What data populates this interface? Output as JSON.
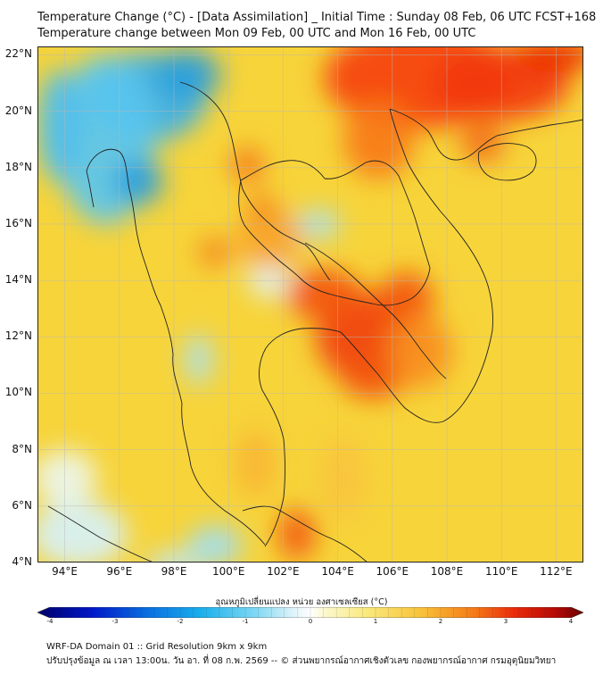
{
  "header": {
    "title_line1": "Temperature Change (°C) - [Data Assimilation] _ Initial Time : Sunday 08 Feb, 06 UTC FCST+168",
    "title_line2": "Temperature change between Mon 09 Feb, 00 UTC and Mon 16 Feb, 00 UTC"
  },
  "map": {
    "lon_range": [
      93,
      113
    ],
    "lat_range": [
      4,
      22.3
    ],
    "lat_ticks": [
      "22°N",
      "20°N",
      "18°N",
      "16°N",
      "14°N",
      "12°N",
      "10°N",
      "8°N",
      "6°N",
      "4°N"
    ],
    "lon_ticks": [
      "94°E",
      "96°E",
      "98°E",
      "100°E",
      "102°E",
      "104°E",
      "106°E",
      "108°E",
      "110°E",
      "112°E"
    ],
    "background_color": "#f7d43a",
    "fields": [
      {
        "lon": 97.0,
        "lat": 20.5,
        "rx": 2.2,
        "ry": 1.6,
        "color": "#3cb0e8",
        "value": -1.6
      },
      {
        "lon": 95.5,
        "lat": 19.0,
        "rx": 1.8,
        "ry": 3.0,
        "color": "#5ac6f0",
        "value": -1.4
      },
      {
        "lon": 98.5,
        "lat": 21.3,
        "rx": 1.2,
        "ry": 0.9,
        "color": "#2a9edc",
        "value": -2.0
      },
      {
        "lon": 96.7,
        "lat": 17.5,
        "rx": 0.9,
        "ry": 0.8,
        "color": "#2a9edc",
        "value": -2.0
      },
      {
        "lon": 93.8,
        "lat": 19.5,
        "rx": 0.8,
        "ry": 2.0,
        "color": "#4fbeee",
        "value": -1.5
      },
      {
        "lon": 103.3,
        "lat": 16.0,
        "rx": 0.8,
        "ry": 0.5,
        "color": "#a8e2f5",
        "value": -0.8
      },
      {
        "lon": 101.5,
        "lat": 14.0,
        "rx": 0.8,
        "ry": 0.6,
        "color": "#dff3f8",
        "value": -0.3
      },
      {
        "lon": 98.9,
        "lat": 11.2,
        "rx": 0.5,
        "ry": 0.9,
        "color": "#a8e2f5",
        "value": -0.8
      },
      {
        "lon": 94.0,
        "lat": 7.0,
        "rx": 1.2,
        "ry": 1.0,
        "color": "#ecf6ee",
        "value": -0.2
      },
      {
        "lon": 94.5,
        "lat": 5.0,
        "rx": 1.8,
        "ry": 1.2,
        "color": "#d6f1f8",
        "value": -0.4
      },
      {
        "lon": 99.5,
        "lat": 4.6,
        "rx": 1.0,
        "ry": 0.7,
        "color": "#9edef5",
        "value": -0.9
      },
      {
        "lon": 98.0,
        "lat": 3.9,
        "rx": 1.0,
        "ry": 0.5,
        "color": "#bfe8f6",
        "value": -0.7
      },
      {
        "lon": 107.0,
        "lat": 21.2,
        "rx": 3.5,
        "ry": 1.8,
        "color": "#f5410e",
        "value": 2.8
      },
      {
        "lon": 110.0,
        "lat": 21.0,
        "rx": 2.5,
        "ry": 1.3,
        "color": "#f23a0a",
        "value": 2.9
      },
      {
        "lon": 112.0,
        "lat": 22.0,
        "rx": 1.5,
        "ry": 0.6,
        "color": "#ea2a05",
        "value": 3.1
      },
      {
        "lon": 105.5,
        "lat": 19.0,
        "rx": 1.3,
        "ry": 1.4,
        "color": "#f77a18",
        "value": 2.3
      },
      {
        "lon": 109.3,
        "lat": 18.9,
        "rx": 0.8,
        "ry": 0.7,
        "color": "#f26a16",
        "value": 2.5
      },
      {
        "lon": 105.0,
        "lat": 12.0,
        "rx": 1.8,
        "ry": 1.6,
        "color": "#f0400c",
        "value": 2.9
      },
      {
        "lon": 103.5,
        "lat": 13.5,
        "rx": 1.4,
        "ry": 0.9,
        "color": "#f25512",
        "value": 2.6
      },
      {
        "lon": 106.5,
        "lat": 13.3,
        "rx": 1.0,
        "ry": 1.0,
        "color": "#f25512",
        "value": 2.6
      },
      {
        "lon": 105.3,
        "lat": 10.6,
        "rx": 1.2,
        "ry": 0.8,
        "color": "#f25512",
        "value": 2.6
      },
      {
        "lon": 107.0,
        "lat": 11.5,
        "rx": 1.2,
        "ry": 1.3,
        "color": "#f78d20",
        "value": 2.1
      },
      {
        "lon": 101.5,
        "lat": 15.5,
        "rx": 1.2,
        "ry": 1.1,
        "color": "#f7a52a",
        "value": 1.8
      },
      {
        "lon": 100.7,
        "lat": 18.1,
        "rx": 0.6,
        "ry": 0.6,
        "color": "#f5721a",
        "value": 2.3
      },
      {
        "lon": 101.2,
        "lat": 16.6,
        "rx": 0.5,
        "ry": 0.5,
        "color": "#f5801c",
        "value": 2.2
      },
      {
        "lon": 99.5,
        "lat": 15.0,
        "rx": 0.6,
        "ry": 0.5,
        "color": "#f5801c",
        "value": 2.2
      },
      {
        "lon": 102.5,
        "lat": 5.0,
        "rx": 0.7,
        "ry": 0.9,
        "color": "#f25a12",
        "value": 2.6
      },
      {
        "lon": 101.0,
        "lat": 7.5,
        "rx": 0.7,
        "ry": 1.2,
        "color": "#f8b434",
        "value": 1.6
      },
      {
        "lon": 104.2,
        "lat": 7.0,
        "rx": 0.9,
        "ry": 1.5,
        "color": "#f9c43d",
        "value": 1.4
      }
    ]
  },
  "colorbar": {
    "title": "อุณหภูมิเปลี่ยนแปลง หน่วย องศาเซลเซียส (°C)",
    "range": [
      -4,
      4
    ],
    "tick_labels": [
      "-4",
      "-3",
      "-2",
      "-1",
      "0",
      "1",
      "2",
      "3",
      "4"
    ],
    "stops": [
      {
        "v": -4.0,
        "c": "#00006a"
      },
      {
        "v": -3.2,
        "c": "#0018c8"
      },
      {
        "v": -2.4,
        "c": "#0a6ee0"
      },
      {
        "v": -1.6,
        "c": "#1ab0ec"
      },
      {
        "v": -0.8,
        "c": "#80d8f4"
      },
      {
        "v": -0.2,
        "c": "#e6f6fa"
      },
      {
        "v": 0.0,
        "c": "#ffffff"
      },
      {
        "v": 0.2,
        "c": "#fcf8d0"
      },
      {
        "v": 0.8,
        "c": "#faea80"
      },
      {
        "v": 1.6,
        "c": "#f8c43a"
      },
      {
        "v": 2.4,
        "c": "#f47a18"
      },
      {
        "v": 3.0,
        "c": "#ea2a0a"
      },
      {
        "v": 3.6,
        "c": "#b40a05"
      },
      {
        "v": 4.0,
        "c": "#6a0000"
      }
    ]
  },
  "footer": {
    "line1": "WRF-DA Domain 01 :: Grid Resolution 9km x 9km",
    "line2": "ปรับปรุงข้อมูล ณ เวลา 13:00น. วัน อา. ที่ 08 ก.พ. 2569 -- © ส่วนพยากรณ์อากาศเชิงตัวเลข กองพยากรณ์อากาศ กรมอุตุนิยมวิทยา"
  }
}
